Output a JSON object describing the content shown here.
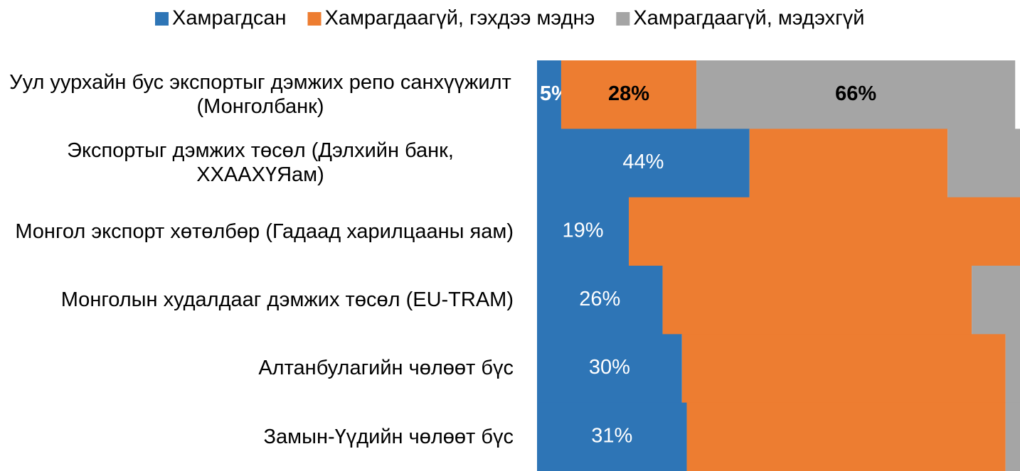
{
  "chart_data": {
    "type": "stacked_bar_horizontal",
    "categories": [
      "Уул уурхайн бус экспортыг дэмжих репо санхүүжилт (Монголбанк)",
      "Экспортыг дэмжих төсөл (Дэлхийн банк, ХХААХҮЯам)",
      "Монгол экспорт хөтөлбөр (Гадаад харилцааны яам)",
      "Монголын худалдааг дэмжих төсөл (EU-TRAM)",
      "Алтанбулагийн чөлөөт бүс",
      "Замын-Үүдийн чөлөөт бүс"
    ],
    "series": [
      {
        "name": "Хамрагдсан",
        "color": "#2e75b6",
        "values": [
          5,
          44,
          19,
          26,
          30,
          31
        ],
        "value_labels": [
          "5%",
          "44%",
          "19%",
          "26%",
          "30%",
          "31%"
        ]
      },
      {
        "name": "Хамрагдаагүй, гэхдээ мэднэ",
        "color": "#ed7d31",
        "values": [
          28,
          41,
          81,
          64,
          67,
          66
        ],
        "value_labels": [
          "28%",
          null,
          null,
          null,
          null,
          null
        ]
      },
      {
        "name": "Хамрагдаагүй, мэдэхгүй",
        "color": "#a5a5a5",
        "values": [
          66,
          15,
          0,
          10,
          3,
          3
        ],
        "value_labels": [
          "66%",
          null,
          null,
          null,
          null,
          null
        ]
      }
    ],
    "xlim": [
      0,
      100
    ],
    "legend": "top"
  }
}
